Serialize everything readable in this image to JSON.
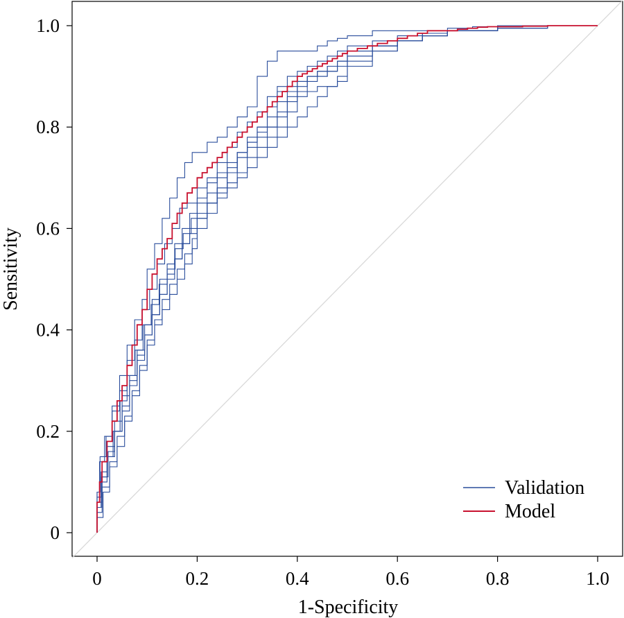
{
  "chart_data": {
    "type": "line",
    "title": "",
    "xlabel": "1-Specificity",
    "ylabel": "Sensitivity",
    "xlim": [
      0,
      1
    ],
    "ylim": [
      0,
      1
    ],
    "xticks": [
      0,
      0.2,
      0.4,
      0.6,
      0.8,
      1.0
    ],
    "xtick_labels": [
      "0",
      "0.2",
      "0.4",
      "0.6",
      "0.8",
      "1.0"
    ],
    "yticks": [
      0,
      0.2,
      0.4,
      0.6,
      0.8,
      1.0
    ],
    "ytick_labels": [
      "0",
      "0.2",
      "0.4",
      "0.6",
      "0.8",
      "1.0"
    ],
    "grid": false,
    "legend": {
      "position": "bottom-right",
      "entries": [
        {
          "label": "Validation",
          "color": "#2a4d9c"
        },
        {
          "label": "Model",
          "color": "#c8102e"
        }
      ]
    },
    "colors": {
      "validation": "#2a4d9c",
      "model": "#c8102e",
      "diagonal": "#d9d9d9"
    },
    "reference_line": {
      "x": [
        0,
        1
      ],
      "y": [
        0,
        1
      ]
    },
    "series": [
      {
        "group": "Model",
        "x": [
          0,
          0.005,
          0.01,
          0.02,
          0.03,
          0.04,
          0.05,
          0.06,
          0.07,
          0.08,
          0.09,
          0.1,
          0.11,
          0.12,
          0.13,
          0.14,
          0.15,
          0.16,
          0.17,
          0.18,
          0.19,
          0.2,
          0.21,
          0.22,
          0.23,
          0.24,
          0.25,
          0.26,
          0.27,
          0.28,
          0.29,
          0.3,
          0.31,
          0.32,
          0.33,
          0.34,
          0.35,
          0.36,
          0.37,
          0.38,
          0.39,
          0.4,
          0.41,
          0.42,
          0.43,
          0.44,
          0.45,
          0.46,
          0.47,
          0.48,
          0.49,
          0.5,
          0.52,
          0.54,
          0.56,
          0.58,
          0.6,
          0.62,
          0.64,
          0.66,
          0.68,
          0.7,
          0.72,
          0.74,
          0.76,
          0.78,
          0.8,
          0.85,
          0.9,
          0.95,
          1.0
        ],
        "y": [
          0,
          0.06,
          0.1,
          0.14,
          0.18,
          0.22,
          0.26,
          0.29,
          0.33,
          0.37,
          0.41,
          0.44,
          0.48,
          0.51,
          0.54,
          0.56,
          0.58,
          0.61,
          0.63,
          0.65,
          0.67,
          0.68,
          0.7,
          0.71,
          0.72,
          0.73,
          0.74,
          0.75,
          0.76,
          0.77,
          0.78,
          0.79,
          0.8,
          0.81,
          0.82,
          0.83,
          0.84,
          0.85,
          0.86,
          0.87,
          0.88,
          0.89,
          0.9,
          0.905,
          0.91,
          0.915,
          0.92,
          0.925,
          0.93,
          0.935,
          0.94,
          0.945,
          0.95,
          0.955,
          0.96,
          0.965,
          0.97,
          0.975,
          0.98,
          0.985,
          0.99,
          0.99,
          0.99,
          0.993,
          0.995,
          0.997,
          0.998,
          0.998,
          0.999,
          1.0,
          1.0
        ]
      },
      {
        "group": "Validation",
        "x": [
          0,
          0.005,
          0.015,
          0.03,
          0.045,
          0.06,
          0.075,
          0.09,
          0.1,
          0.115,
          0.13,
          0.145,
          0.16,
          0.175,
          0.19,
          0.2,
          0.22,
          0.24,
          0.26,
          0.28,
          0.3,
          0.32,
          0.34,
          0.36,
          0.38,
          0.4,
          0.42,
          0.44,
          0.46,
          0.48,
          0.5,
          0.55,
          0.6,
          0.65,
          0.7,
          0.75,
          0.8,
          0.9,
          1.0
        ],
        "y": [
          0,
          0.08,
          0.14,
          0.19,
          0.25,
          0.31,
          0.37,
          0.42,
          0.46,
          0.52,
          0.57,
          0.62,
          0.66,
          0.7,
          0.73,
          0.75,
          0.75,
          0.77,
          0.78,
          0.8,
          0.82,
          0.84,
          0.9,
          0.93,
          0.95,
          0.95,
          0.95,
          0.95,
          0.96,
          0.97,
          0.975,
          0.98,
          0.99,
          0.99,
          0.99,
          0.995,
          0.998,
          1.0,
          1.0
        ]
      },
      {
        "group": "Validation",
        "x": [
          0,
          0.01,
          0.02,
          0.035,
          0.05,
          0.065,
          0.08,
          0.095,
          0.11,
          0.125,
          0.14,
          0.155,
          0.17,
          0.185,
          0.2,
          0.22,
          0.24,
          0.26,
          0.28,
          0.3,
          0.32,
          0.34,
          0.36,
          0.38,
          0.4,
          0.42,
          0.44,
          0.46,
          0.48,
          0.5,
          0.55,
          0.6,
          0.65,
          0.7,
          0.8,
          0.9,
          1.0
        ],
        "y": [
          0,
          0.05,
          0.1,
          0.15,
          0.2,
          0.24,
          0.29,
          0.34,
          0.39,
          0.43,
          0.47,
          0.5,
          0.54,
          0.57,
          0.6,
          0.63,
          0.65,
          0.67,
          0.69,
          0.7,
          0.72,
          0.74,
          0.76,
          0.78,
          0.8,
          0.82,
          0.84,
          0.86,
          0.88,
          0.9,
          0.93,
          0.95,
          0.97,
          0.98,
          0.99,
          1.0,
          1.0
        ]
      },
      {
        "group": "Validation",
        "x": [
          0,
          0.008,
          0.02,
          0.035,
          0.05,
          0.065,
          0.08,
          0.095,
          0.11,
          0.125,
          0.14,
          0.155,
          0.17,
          0.185,
          0.2,
          0.22,
          0.24,
          0.26,
          0.28,
          0.3,
          0.32,
          0.34,
          0.36,
          0.38,
          0.4,
          0.42,
          0.44,
          0.46,
          0.48,
          0.5,
          0.55,
          0.6,
          0.65,
          0.7,
          0.8,
          0.9,
          1.0
        ],
        "y": [
          0,
          0.07,
          0.12,
          0.17,
          0.22,
          0.27,
          0.31,
          0.36,
          0.41,
          0.46,
          0.5,
          0.53,
          0.57,
          0.6,
          0.63,
          0.66,
          0.69,
          0.71,
          0.73,
          0.75,
          0.77,
          0.79,
          0.8,
          0.83,
          0.86,
          0.88,
          0.9,
          0.91,
          0.92,
          0.93,
          0.95,
          0.96,
          0.97,
          0.98,
          0.99,
          0.995,
          1.0
        ]
      },
      {
        "group": "Validation",
        "x": [
          0,
          0.01,
          0.025,
          0.04,
          0.055,
          0.07,
          0.085,
          0.1,
          0.115,
          0.13,
          0.145,
          0.16,
          0.175,
          0.19,
          0.2,
          0.22,
          0.24,
          0.26,
          0.28,
          0.3,
          0.32,
          0.34,
          0.36,
          0.38,
          0.4,
          0.42,
          0.44,
          0.46,
          0.48,
          0.5,
          0.55,
          0.6,
          0.65,
          0.7,
          0.8,
          0.9,
          1.0
        ],
        "y": [
          0,
          0.04,
          0.09,
          0.14,
          0.19,
          0.23,
          0.28,
          0.33,
          0.38,
          0.42,
          0.46,
          0.49,
          0.52,
          0.55,
          0.58,
          0.62,
          0.65,
          0.68,
          0.71,
          0.74,
          0.77,
          0.8,
          0.84,
          0.87,
          0.88,
          0.89,
          0.9,
          0.9,
          0.91,
          0.92,
          0.94,
          0.96,
          0.97,
          0.98,
          0.99,
          1.0,
          1.0
        ]
      },
      {
        "group": "Validation",
        "x": [
          0,
          0.012,
          0.025,
          0.04,
          0.055,
          0.07,
          0.085,
          0.1,
          0.115,
          0.13,
          0.145,
          0.16,
          0.175,
          0.19,
          0.2,
          0.22,
          0.24,
          0.26,
          0.28,
          0.3,
          0.32,
          0.34,
          0.36,
          0.38,
          0.4,
          0.42,
          0.44,
          0.46,
          0.48,
          0.5,
          0.55,
          0.6,
          0.65,
          0.7,
          0.8,
          0.9,
          1.0
        ],
        "y": [
          0,
          0.03,
          0.08,
          0.13,
          0.17,
          0.22,
          0.27,
          0.32,
          0.37,
          0.41,
          0.44,
          0.47,
          0.5,
          0.53,
          0.56,
          0.6,
          0.63,
          0.66,
          0.68,
          0.71,
          0.74,
          0.76,
          0.78,
          0.8,
          0.83,
          0.86,
          0.87,
          0.88,
          0.88,
          0.89,
          0.92,
          0.95,
          0.97,
          0.985,
          0.99,
          1.0,
          1.0
        ]
      },
      {
        "group": "Validation",
        "x": [
          0,
          0.006,
          0.018,
          0.03,
          0.045,
          0.06,
          0.075,
          0.09,
          0.105,
          0.12,
          0.135,
          0.15,
          0.165,
          0.18,
          0.2,
          0.22,
          0.24,
          0.26,
          0.28,
          0.3,
          0.32,
          0.34,
          0.36,
          0.38,
          0.4,
          0.42,
          0.44,
          0.46,
          0.48,
          0.5,
          0.55,
          0.6,
          0.65,
          0.7,
          0.8,
          0.9,
          1.0
        ],
        "y": [
          0,
          0.08,
          0.15,
          0.19,
          0.24,
          0.28,
          0.34,
          0.38,
          0.44,
          0.48,
          0.53,
          0.57,
          0.6,
          0.64,
          0.65,
          0.68,
          0.7,
          0.73,
          0.76,
          0.79,
          0.81,
          0.83,
          0.86,
          0.88,
          0.9,
          0.91,
          0.92,
          0.93,
          0.94,
          0.95,
          0.96,
          0.97,
          0.98,
          0.985,
          0.99,
          1.0,
          1.0
        ]
      },
      {
        "group": "Validation",
        "x": [
          0,
          0.01,
          0.022,
          0.035,
          0.05,
          0.065,
          0.08,
          0.095,
          0.11,
          0.125,
          0.14,
          0.155,
          0.17,
          0.185,
          0.2,
          0.22,
          0.24,
          0.26,
          0.28,
          0.3,
          0.32,
          0.34,
          0.36,
          0.38,
          0.4,
          0.42,
          0.44,
          0.46,
          0.48,
          0.5,
          0.55,
          0.6,
          0.65,
          0.7,
          0.8,
          0.9,
          1.0
        ],
        "y": [
          0,
          0.06,
          0.11,
          0.16,
          0.2,
          0.25,
          0.3,
          0.35,
          0.39,
          0.43,
          0.47,
          0.51,
          0.54,
          0.57,
          0.59,
          0.62,
          0.65,
          0.68,
          0.71,
          0.74,
          0.76,
          0.78,
          0.8,
          0.82,
          0.85,
          0.87,
          0.89,
          0.9,
          0.91,
          0.92,
          0.94,
          0.96,
          0.97,
          0.98,
          0.99,
          1.0,
          1.0
        ]
      },
      {
        "group": "Validation",
        "x": [
          0,
          0.008,
          0.02,
          0.032,
          0.046,
          0.06,
          0.076,
          0.092,
          0.108,
          0.124,
          0.14,
          0.156,
          0.172,
          0.188,
          0.2,
          0.22,
          0.24,
          0.26,
          0.28,
          0.3,
          0.32,
          0.34,
          0.36,
          0.38,
          0.4,
          0.42,
          0.44,
          0.46,
          0.48,
          0.5,
          0.55,
          0.6,
          0.65,
          0.7,
          0.8,
          0.9,
          1.0
        ],
        "y": [
          0,
          0.05,
          0.11,
          0.15,
          0.2,
          0.26,
          0.31,
          0.36,
          0.41,
          0.45,
          0.49,
          0.52,
          0.56,
          0.59,
          0.62,
          0.65,
          0.67,
          0.7,
          0.72,
          0.75,
          0.78,
          0.8,
          0.82,
          0.85,
          0.87,
          0.89,
          0.9,
          0.91,
          0.92,
          0.93,
          0.95,
          0.96,
          0.97,
          0.98,
          0.99,
          0.995,
          1.0
        ]
      }
    ]
  }
}
